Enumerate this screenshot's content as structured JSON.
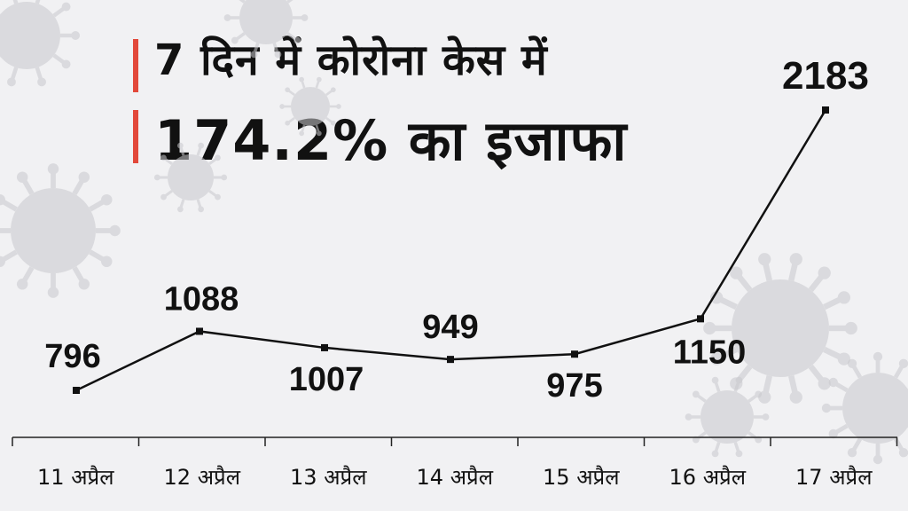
{
  "headline": {
    "line1": "7 दिन में कोरोना केस में",
    "line2": "174.2% का इजाफा",
    "accent_color": "#e2483a"
  },
  "colors": {
    "background": "#f1f1f3",
    "line": "#111111",
    "decoration": "#c9c9cd"
  },
  "chart_data": {
    "type": "line",
    "categories": [
      "11 अप्रैल",
      "12 अप्रैल",
      "13 अप्रैल",
      "14 अप्रैल",
      "15 अप्रैल",
      "16 अप्रैल",
      "17 अप्रैल"
    ],
    "series": [
      {
        "values": [
          796,
          1088,
          1007,
          949,
          975,
          1150,
          2183
        ]
      }
    ],
    "data_labels": [
      "796",
      "1088",
      "1007",
      "949",
      "975",
      "1150",
      "2183"
    ],
    "title": "7 दिन में कोरोना केस में 174.2% का इजाफा",
    "xlabel": "",
    "ylabel": "",
    "grid": false,
    "legend": "none"
  }
}
